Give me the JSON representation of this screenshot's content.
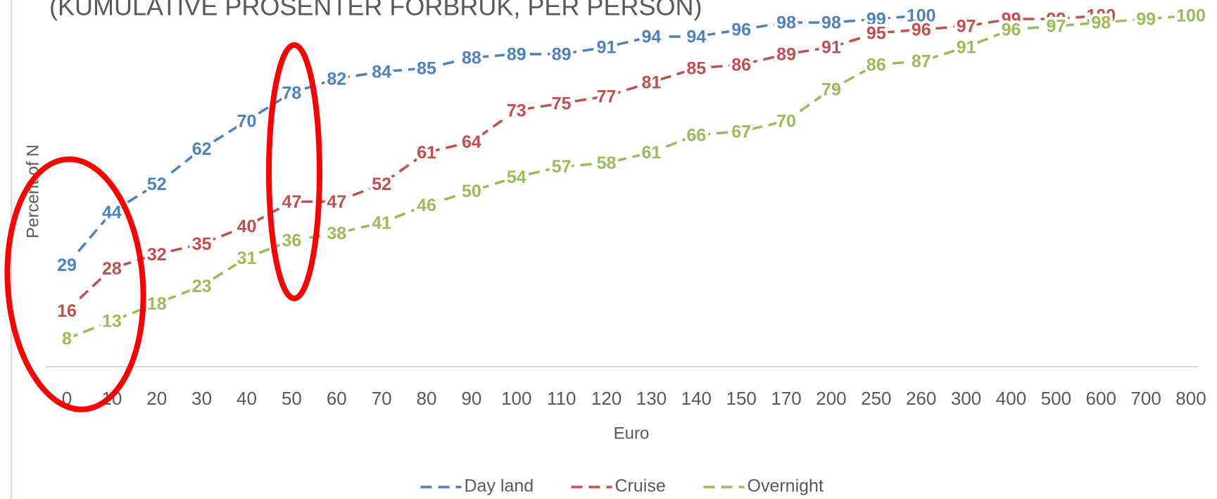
{
  "chart_data": {
    "type": "line",
    "title": "(KUMULATIVE PROSENTER FORBRUK, PER PERSON)",
    "x_label": "Euro",
    "y_label": "Percent of N",
    "categories": [
      "0",
      "10",
      "20",
      "30",
      "40",
      "50",
      "60",
      "70",
      "80",
      "90",
      "100",
      "110",
      "120",
      "130",
      "140",
      "150",
      "170",
      "200",
      "250",
      "260",
      "300",
      "400",
      "500",
      "600",
      "700",
      "800"
    ],
    "series": [
      {
        "name": "Day land",
        "color": "#4f81bd",
        "values": [
          29,
          44,
          52,
          62,
          70,
          78,
          82,
          84,
          85,
          88,
          89,
          89,
          91,
          94,
          94,
          96,
          98,
          98,
          99,
          100,
          null,
          null,
          null,
          null,
          null,
          null
        ]
      },
      {
        "name": "Cruise",
        "color": "#c0504d",
        "values": [
          16,
          28,
          32,
          35,
          40,
          47,
          47,
          52,
          61,
          64,
          73,
          75,
          77,
          81,
          85,
          86,
          89,
          91,
          95,
          96,
          97,
          99,
          99,
          100,
          null,
          null
        ]
      },
      {
        "name": "Overnight",
        "color": "#9bbb59",
        "values": [
          8,
          13,
          18,
          23,
          31,
          36,
          38,
          41,
          46,
          50,
          54,
          57,
          58,
          61,
          66,
          67,
          70,
          79,
          86,
          87,
          91,
          96,
          97,
          98,
          99,
          100
        ]
      }
    ],
    "ylim": [
      0,
      100
    ],
    "legend": "bottom"
  }
}
